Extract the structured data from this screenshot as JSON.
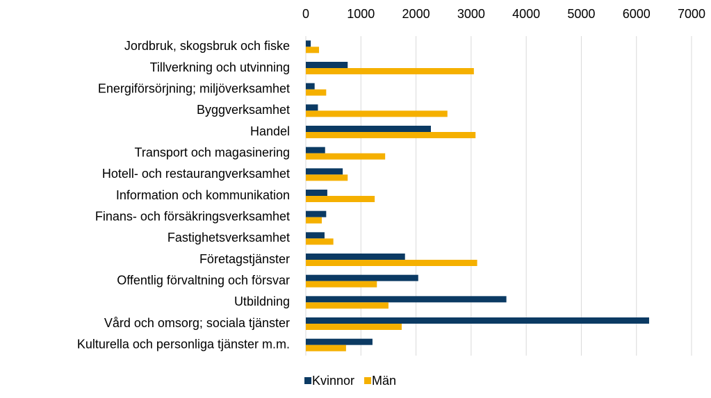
{
  "chart_data": {
    "type": "bar",
    "orientation": "horizontal",
    "categories": [
      "Jordbruk, skogsbruk och fiske",
      "Tillverkning och utvinning",
      "Energiförsörjning; miljöverksamhet",
      "Byggverksamhet",
      "Handel",
      "Transport och magasinering",
      "Hotell- och restaurangverksamhet",
      "Information och kommunikation",
      "Finans- och försäkringsverksamhet",
      "Fastighetsverksamhet",
      "Företagstjänster",
      "Offentlig förvaltning och försvar",
      "Utbildning",
      "Vård och omsorg; sociala tjänster",
      "Kulturella och personliga tjänster m.m."
    ],
    "series": [
      {
        "name": "Kvinnor",
        "color": "#0b3a63",
        "values": [
          90,
          760,
          160,
          220,
          2270,
          350,
          670,
          390,
          370,
          340,
          1800,
          2040,
          3640,
          6230,
          1210
        ]
      },
      {
        "name": "Män",
        "color": "#f5b000",
        "values": [
          240,
          3050,
          370,
          2570,
          3080,
          1440,
          760,
          1250,
          290,
          500,
          3110,
          1290,
          1500,
          1740,
          730
        ]
      }
    ],
    "xlim": [
      0,
      7000
    ],
    "xticks": [
      0,
      1000,
      2000,
      3000,
      4000,
      5000,
      6000,
      7000
    ],
    "grid": true,
    "legend": "bottom"
  }
}
